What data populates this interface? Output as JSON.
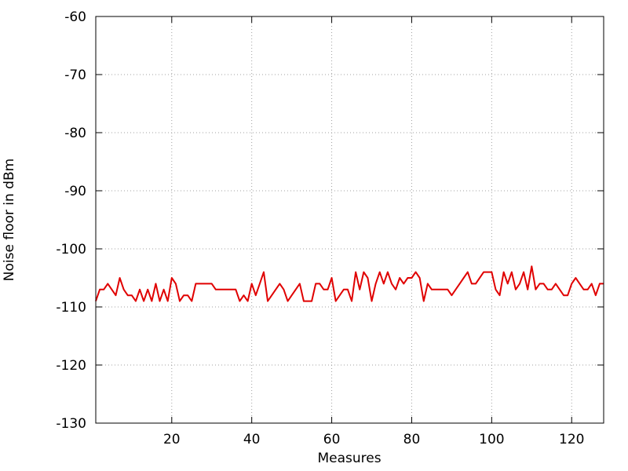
{
  "chart_data": {
    "type": "line",
    "title": "",
    "xlabel": "Measures",
    "ylabel": "Noise floor in dBm",
    "xlim": [
      1,
      128
    ],
    "ylim": [
      -130,
      -60
    ],
    "x_ticks": [
      20,
      40,
      60,
      80,
      100,
      120
    ],
    "y_ticks": [
      -130,
      -120,
      -110,
      -100,
      -90,
      -80,
      -70,
      -60
    ],
    "x_tick_labels": [
      "20",
      "40",
      "60",
      "80",
      "100",
      "120"
    ],
    "y_tick_labels": [
      "-130",
      "-120",
      "-110",
      "-100",
      "-90",
      "-80",
      "-70",
      "-60"
    ],
    "grid": true,
    "legend": "none",
    "series": [
      {
        "color": "#e00000",
        "x": [
          1,
          2,
          3,
          4,
          5,
          6,
          7,
          8,
          9,
          10,
          11,
          12,
          13,
          14,
          15,
          16,
          17,
          18,
          19,
          20,
          21,
          22,
          23,
          24,
          25,
          26,
          27,
          28,
          29,
          30,
          31,
          32,
          33,
          34,
          35,
          36,
          37,
          38,
          39,
          40,
          41,
          42,
          43,
          44,
          45,
          46,
          47,
          48,
          49,
          50,
          51,
          52,
          53,
          54,
          55,
          56,
          57,
          58,
          59,
          60,
          61,
          62,
          63,
          64,
          65,
          66,
          67,
          68,
          69,
          70,
          71,
          72,
          73,
          74,
          75,
          76,
          77,
          78,
          79,
          80,
          81,
          82,
          83,
          84,
          85,
          86,
          87,
          88,
          89,
          90,
          91,
          92,
          93,
          94,
          95,
          96,
          97,
          98,
          99,
          100,
          101,
          102,
          103,
          104,
          105,
          106,
          107,
          108,
          109,
          110,
          111,
          112,
          113,
          114,
          115,
          116,
          117,
          118,
          119,
          120,
          121,
          122,
          123,
          124,
          125,
          126,
          127,
          128
        ],
        "values": [
          -109,
          -107,
          -107,
          -106,
          -107,
          -108,
          -105,
          -107,
          -108,
          -108,
          -109,
          -107,
          -109,
          -107,
          -109,
          -106,
          -109,
          -107,
          -109,
          -105,
          -106,
          -109,
          -108,
          -108,
          -109,
          -106,
          -106,
          -106,
          -106,
          -106,
          -107,
          -107,
          -107,
          -107,
          -107,
          -107,
          -109,
          -108,
          -109,
          -106,
          -108,
          -106,
          -104,
          -109,
          -108,
          -107,
          -106,
          -107,
          -109,
          -108,
          -107,
          -106,
          -109,
          -109,
          -109,
          -106,
          -106,
          -107,
          -107,
          -105,
          -109,
          -108,
          -107,
          -107,
          -109,
          -104,
          -107,
          -104,
          -105,
          -109,
          -106,
          -104,
          -106,
          -104,
          -106,
          -107,
          -105,
          -106,
          -105,
          -105,
          -104,
          -105,
          -109,
          -106,
          -107,
          -107,
          -107,
          -107,
          -107,
          -108,
          -107,
          -106,
          -105,
          -104,
          -106,
          -106,
          -105,
          -104,
          -104,
          -104,
          -107,
          -108,
          -104,
          -106,
          -104,
          -107,
          -106,
          -104,
          -107,
          -103,
          -107,
          -106,
          -106,
          -107,
          -107,
          -106,
          -107,
          -108,
          -108,
          -106,
          -105,
          -106,
          -107,
          -107,
          -106,
          -108,
          -106,
          -106
        ]
      }
    ]
  }
}
